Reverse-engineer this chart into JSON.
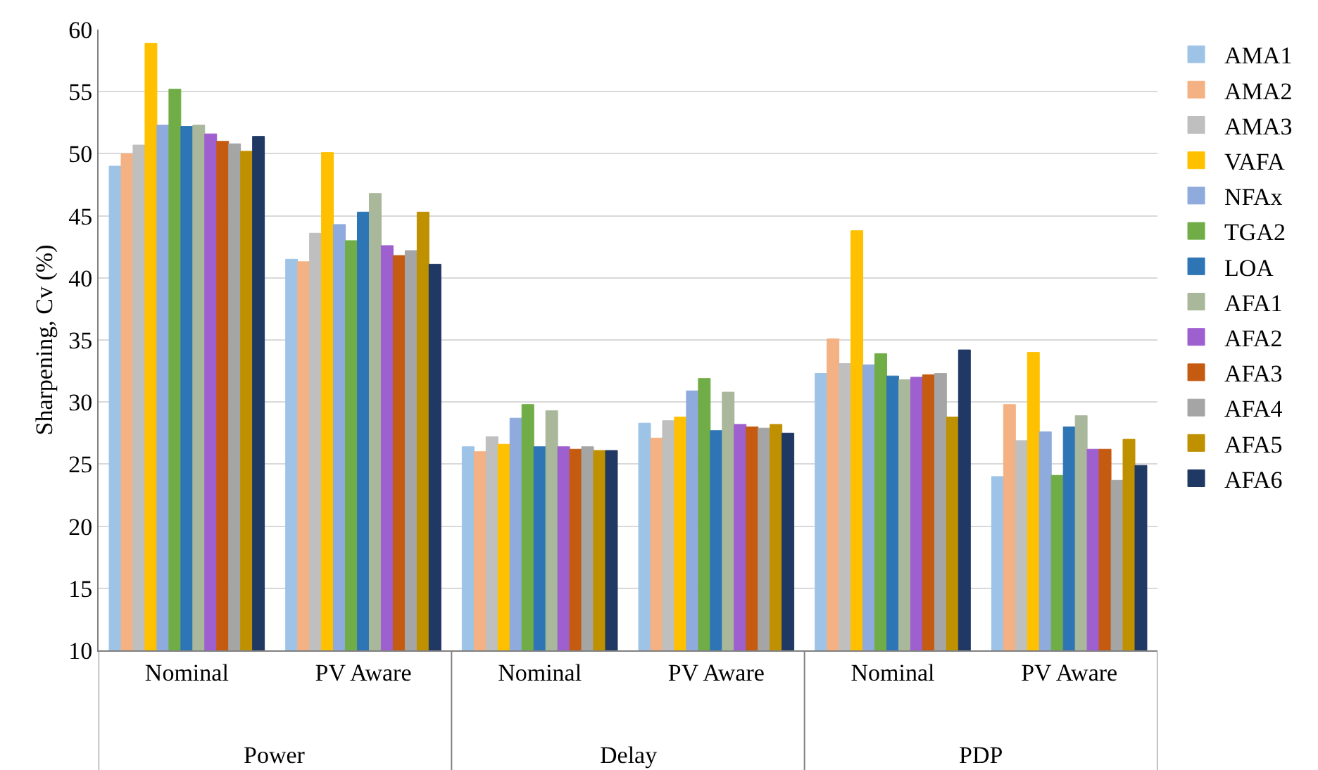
{
  "chart_data": {
    "type": "bar",
    "ylabel": "Sharpening, Cv (%)",
    "categories": [
      "Nominal",
      "PV Aware",
      "Nominal",
      "PV Aware",
      "Nominal",
      "PV Aware"
    ],
    "annotations": [
      "Power",
      "Delay",
      "PDP"
    ],
    "ylim": [
      10,
      60
    ],
    "yticks": [
      10,
      15,
      20,
      25,
      30,
      35,
      40,
      45,
      50,
      55,
      60
    ],
    "grid": "y",
    "legend": "right",
    "series": [
      {
        "name": "AMA1",
        "color": "#9dc3e6",
        "values": [
          49,
          41.5,
          26.4,
          28.3,
          32.3,
          24
        ]
      },
      {
        "name": "AMA2",
        "color": "#f4b183",
        "values": [
          50,
          41.3,
          26,
          27.1,
          35.1,
          29.8
        ]
      },
      {
        "name": "AMA3",
        "color": "#bfbfbf",
        "values": [
          50.7,
          43.6,
          27.2,
          28.5,
          33.1,
          26.9
        ]
      },
      {
        "name": "VAFA",
        "color": "#ffc000",
        "values": [
          58.9,
          50.1,
          26.6,
          28.8,
          43.8,
          34
        ]
      },
      {
        "name": "NFAx",
        "color": "#8faadc",
        "values": [
          52.3,
          44.3,
          28.7,
          30.9,
          33,
          27.6
        ]
      },
      {
        "name": "TGA2",
        "color": "#70ad47",
        "values": [
          55.2,
          43,
          29.8,
          31.9,
          33.9,
          24.1
        ]
      },
      {
        "name": "LOA",
        "color": "#2e75b6",
        "values": [
          52.2,
          45.3,
          26.4,
          27.7,
          32.1,
          28
        ]
      },
      {
        "name": "AFA1",
        "color": "#a9b79b",
        "values": [
          52.3,
          46.8,
          29.3,
          30.8,
          31.8,
          28.9
        ]
      },
      {
        "name": "AFA2",
        "color": "#9e5fcf",
        "values": [
          51.6,
          42.6,
          26.4,
          28.2,
          32,
          26.2
        ]
      },
      {
        "name": "AFA3",
        "color": "#c55a11",
        "values": [
          51,
          41.8,
          26.2,
          28,
          32.2,
          26.2
        ]
      },
      {
        "name": "AFA4",
        "color": "#a5a5a5",
        "values": [
          50.8,
          42.2,
          26.4,
          27.9,
          32.3,
          23.7
        ]
      },
      {
        "name": "AFA5",
        "color": "#bf9000",
        "values": [
          50.2,
          45.3,
          26.1,
          28.2,
          28.8,
          27
        ]
      },
      {
        "name": "AFA6",
        "color": "#203864",
        "values": [
          51.4,
          41.1,
          26.1,
          27.5,
          34.2,
          24.9
        ]
      }
    ]
  }
}
